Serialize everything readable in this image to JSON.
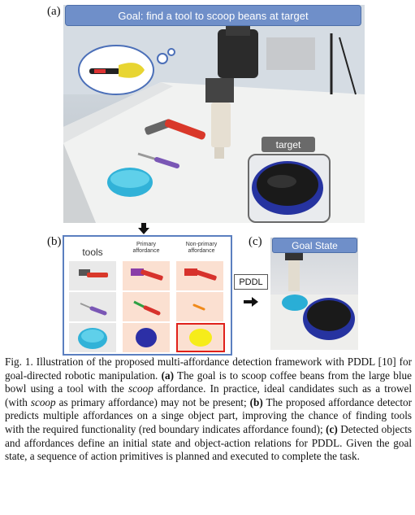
{
  "figure": {
    "labels": {
      "a": "(a)",
      "b": "(b)",
      "c": "(c)"
    },
    "panel_a": {
      "goal_banner": "Goal: find a tool to scoop beans at target",
      "target_label": "target"
    },
    "panel_b": {
      "columns": {
        "tools": "tools",
        "primary": "Primary affordance",
        "non_primary": "Non-primary affordance"
      }
    },
    "pddl_label": "PDDL",
    "panel_c": {
      "banner": "Goal State"
    },
    "colors": {
      "banner_blue": "#6f8fc9",
      "affordance_bg": "#fbe0d1",
      "hammer_purple": "#8a3ea8",
      "hammer_red": "#d7322c",
      "bowl_blue": "#2c2fa6",
      "found_yellow": "#f6ec1a",
      "found_border_red": "#e0211b"
    }
  },
  "caption": {
    "label": "Fig. 1.",
    "s1": " Illustration of the proposed multi-affordance detection framework with PDDL [10] for goal-directed robotic manipulation. ",
    "a_label": "(a)",
    "s2": " The goal is to scoop coffee beans from the large blue bowl using a tool with the ",
    "scoop1": "scoop",
    "s3": " affordance. In practice, ideal candidates such as a trowel (with ",
    "scoop2": "scoop",
    "s4": " as primary affordance) may not be present; ",
    "b_label": "(b)",
    "s5": " The proposed affordance detector predicts multiple affordances on a singe object part, improving the chance of finding tools with the required functionality (red boundary indicates affordance found); ",
    "c_label": "(c)",
    "s6": " Detected objects and affordances define an initial state and object-action relations for PDDL. Given the goal state, a sequence of action primitives is planned and executed to complete the task."
  }
}
